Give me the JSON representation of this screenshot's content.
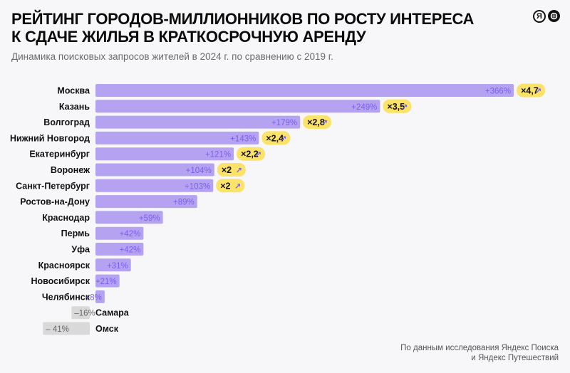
{
  "title_line1": "РЕЙТИНГ ГОРОДОВ-МИЛЛИОННИКОВ ПО РОСТУ ИНТЕРЕСА",
  "title_line2": "К СДАЧЕ ЖИЛЬЯ В КРАТКОСРОЧНУЮ АРЕНДУ",
  "subtitle": "Динамика поисковых запросов жителей в 2024 г. по сравнению с 2019 г.",
  "logos": {
    "yandex": "Я",
    "travel_icon": "globe-pin-icon"
  },
  "source_line1": "По данным исследования Яндекс Поиска",
  "source_line2": "и Яндекс Путешествий",
  "colors": {
    "positive": "#a994f0",
    "negative": "#d9d9d9",
    "badge": "#fbe36a",
    "accent": "#7a5ef0"
  },
  "chart_data": {
    "type": "bar",
    "orientation": "horizontal",
    "categories": [
      "Москва",
      "Казань",
      "Волгоград",
      "Нижний Новгород",
      "Екатеринбург",
      "Воронеж",
      "Санкт-Петербург",
      "Ростов-на-Дону",
      "Краснодар",
      "Пермь",
      "Уфа",
      "Красноярск",
      "Новосибирск",
      "Челябинск",
      "Самара",
      "Омск"
    ],
    "values": [
      366,
      249,
      179,
      143,
      121,
      104,
      103,
      89,
      59,
      42,
      42,
      31,
      21,
      8,
      -16,
      -41
    ],
    "value_labels": [
      "+366%",
      "+249%",
      "+179%",
      "+143%",
      "+121%",
      "+104%",
      "+103%",
      "+89%",
      "+59%",
      "+42%",
      "+42%",
      "+31%",
      "+21%",
      "+8%",
      "–16%",
      "– 41%"
    ],
    "multipliers": [
      "×4,7",
      "×3,5",
      "×2,8",
      "×2,4",
      "×2,2",
      "×2",
      "×2",
      "",
      "",
      "",
      "",
      "",
      "",
      "",
      "",
      ""
    ],
    "unit": "%"
  }
}
